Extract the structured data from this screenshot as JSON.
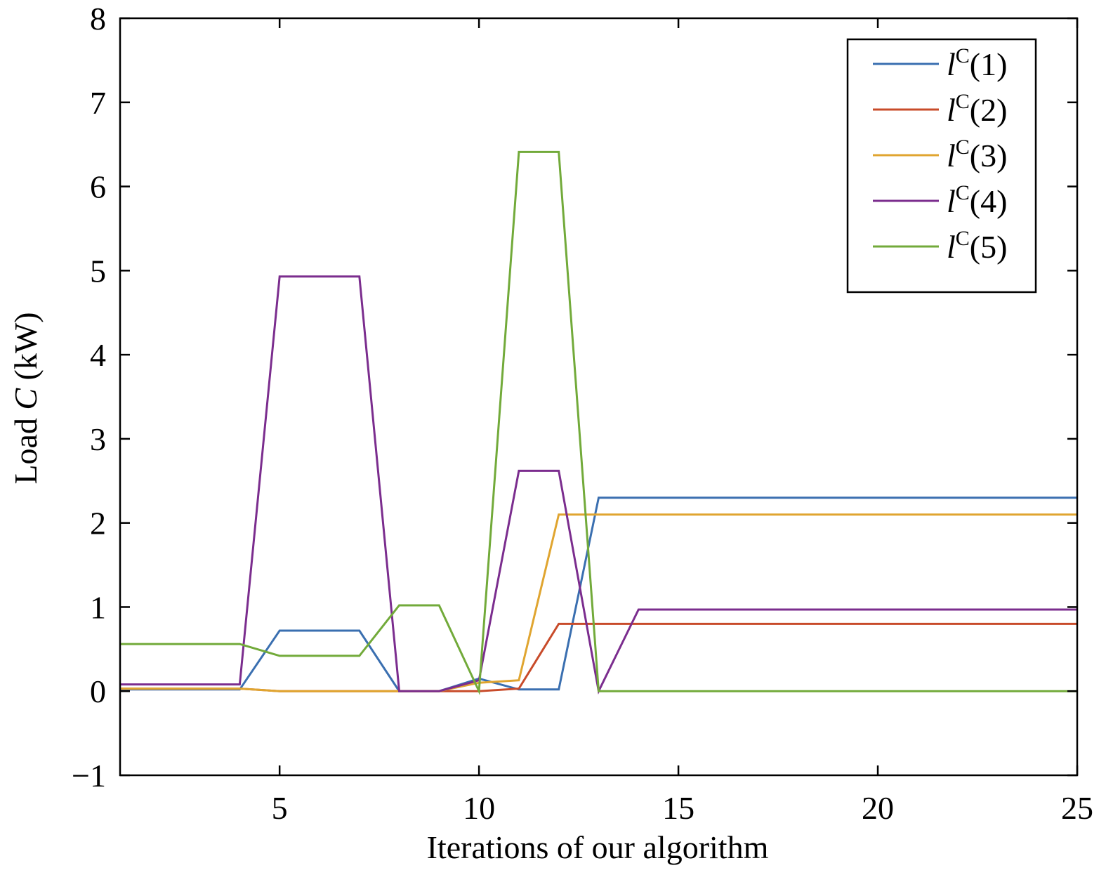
{
  "chart_data": {
    "type": "line",
    "title": "",
    "xlabel": "Iterations of our algorithm",
    "ylabel_prefix": "Load ",
    "ylabel_var": "C",
    "ylabel_suffix": " (kW)",
    "xlim": [
      1,
      25
    ],
    "ylim": [
      -1,
      8
    ],
    "xticks": [
      5,
      10,
      15,
      20,
      25
    ],
    "yticks": [
      -1,
      0,
      1,
      2,
      3,
      4,
      5,
      6,
      7,
      8
    ],
    "ytick_labels": [
      "−1",
      "0",
      "1",
      "2",
      "3",
      "4",
      "5",
      "6",
      "7",
      "8"
    ],
    "grid": false,
    "legend_position": "top-right",
    "x": [
      1,
      2,
      3,
      4,
      5,
      6,
      7,
      8,
      9,
      10,
      11,
      12,
      13,
      14,
      15,
      16,
      17,
      18,
      19,
      20,
      21,
      22,
      23,
      24,
      25
    ],
    "series": [
      {
        "name_var": "l",
        "name_sup": "C",
        "name_arg": "(1)",
        "color": "#3a6fb0",
        "values": [
          0.02,
          0.02,
          0.02,
          0.02,
          0.72,
          0.72,
          0.72,
          0.0,
          0.0,
          0.15,
          0.02,
          0.02,
          2.3,
          2.3,
          2.3,
          2.3,
          2.3,
          2.3,
          2.3,
          2.3,
          2.3,
          2.3,
          2.3,
          2.3,
          2.3
        ]
      },
      {
        "name_var": "l",
        "name_sup": "C",
        "name_arg": "(2)",
        "color": "#c84b2a",
        "values": [
          0.03,
          0.03,
          0.03,
          0.03,
          0.0,
          0.0,
          0.0,
          0.0,
          0.0,
          0.0,
          0.03,
          0.8,
          0.8,
          0.8,
          0.8,
          0.8,
          0.8,
          0.8,
          0.8,
          0.8,
          0.8,
          0.8,
          0.8,
          0.8,
          0.8
        ]
      },
      {
        "name_var": "l",
        "name_sup": "C",
        "name_arg": "(3)",
        "color": "#e0a530",
        "values": [
          0.03,
          0.03,
          0.03,
          0.03,
          0.0,
          0.0,
          0.0,
          0.0,
          0.0,
          0.1,
          0.13,
          2.1,
          2.1,
          2.1,
          2.1,
          2.1,
          2.1,
          2.1,
          2.1,
          2.1,
          2.1,
          2.1,
          2.1,
          2.1,
          2.1
        ]
      },
      {
        "name_var": "l",
        "name_sup": "C",
        "name_arg": "(4)",
        "color": "#7b2d8e",
        "values": [
          0.08,
          0.08,
          0.08,
          0.08,
          4.93,
          4.93,
          4.93,
          0.0,
          0.0,
          0.13,
          2.62,
          2.62,
          0.0,
          0.97,
          0.97,
          0.97,
          0.97,
          0.97,
          0.97,
          0.97,
          0.97,
          0.97,
          0.97,
          0.97,
          0.97
        ]
      },
      {
        "name_var": "l",
        "name_sup": "C",
        "name_arg": "(5)",
        "color": "#72aa3a",
        "values": [
          0.56,
          0.56,
          0.56,
          0.56,
          0.42,
          0.42,
          0.42,
          1.02,
          1.02,
          0.0,
          6.41,
          6.41,
          0.0,
          0.0,
          0.0,
          0.0,
          0.0,
          0.0,
          0.0,
          0.0,
          0.0,
          0.0,
          0.0,
          0.0,
          0.0
        ]
      }
    ]
  }
}
